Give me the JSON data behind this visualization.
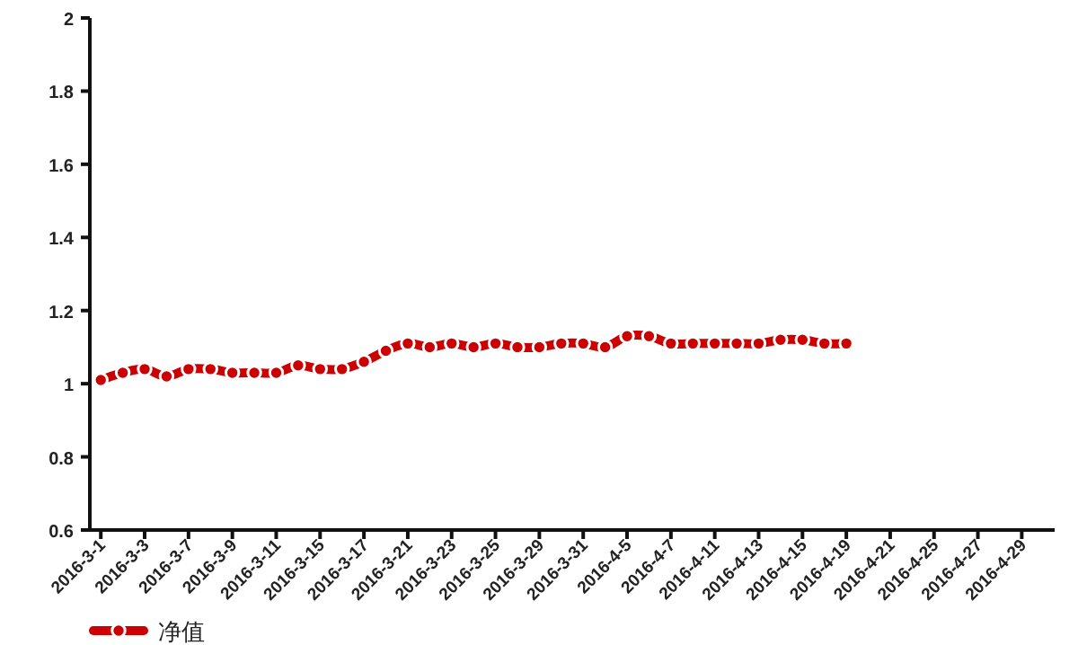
{
  "chart_data": {
    "type": "line",
    "categories": [
      "2016-3-1",
      null,
      "2016-3-3",
      null,
      "2016-3-7",
      null,
      "2016-3-9",
      null,
      "2016-3-11",
      null,
      "2016-3-15",
      null,
      "2016-3-17",
      null,
      "2016-3-21",
      null,
      "2016-3-23",
      null,
      "2016-3-25",
      null,
      "2016-3-29",
      null,
      "2016-3-31",
      null,
      "2016-4-5",
      null,
      "2016-4-7",
      null,
      "2016-4-11",
      null,
      "2016-4-13",
      null,
      "2016-4-15",
      null,
      "2016-4-19",
      null,
      "2016-4-21",
      null,
      "2016-4-25",
      null,
      "2016-4-27",
      null,
      "2016-4-29",
      null
    ],
    "series": [
      {
        "name": "净值",
        "color": "#cc0000",
        "values": [
          1.01,
          1.03,
          1.04,
          1.02,
          1.04,
          1.04,
          1.03,
          1.03,
          1.03,
          1.05,
          1.04,
          1.04,
          1.06,
          1.09,
          1.11,
          1.1,
          1.11,
          1.1,
          1.11,
          1.1,
          1.1,
          1.11,
          1.11,
          1.1,
          1.13,
          1.13,
          1.11,
          1.11,
          1.11,
          1.11,
          1.11,
          1.12,
          1.12,
          1.11,
          1.11,
          null,
          null,
          null,
          null,
          null,
          null,
          null,
          null,
          null
        ]
      }
    ],
    "ylim": [
      0.6,
      2
    ],
    "yticks": [
      0.6,
      0.8,
      1,
      1.2,
      1.4,
      1.6,
      1.8,
      2
    ],
    "marker": "circle",
    "line_style": "solid",
    "grid": false,
    "legend": "bottom left"
  }
}
